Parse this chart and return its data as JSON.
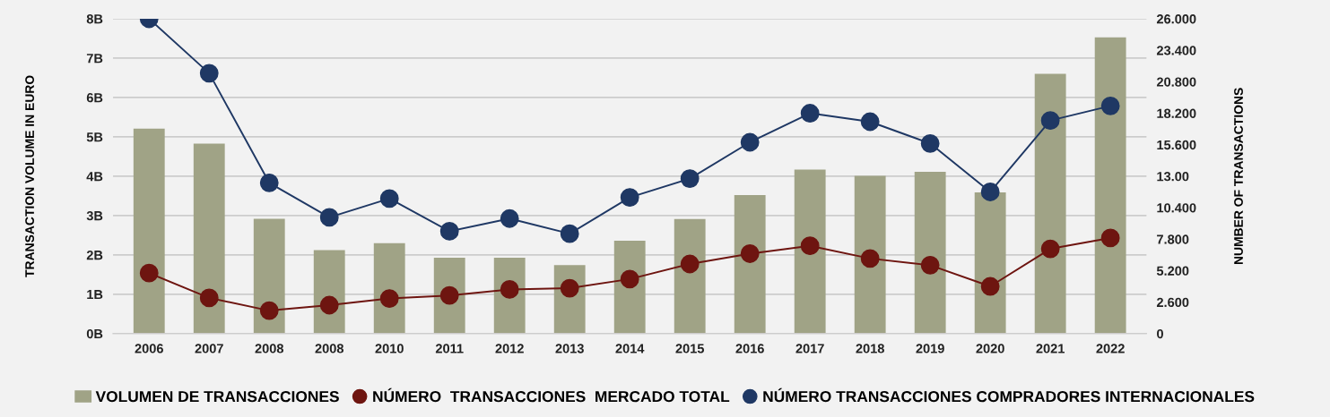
{
  "chart_data": {
    "type": "bar",
    "ylabel": "TRANSACTION VOLUME IN EURO",
    "y2label": "NUMBER OF TRANSACTIONS",
    "categories": [
      "2006",
      "2007",
      "2008",
      "2008",
      "2010",
      "2011",
      "2012",
      "2013",
      "2014",
      "2015",
      "2016",
      "2017",
      "2018",
      "2019",
      "2020",
      "2021",
      "2022"
    ],
    "series": [
      {
        "name": "VOLUMEN DE TRANSACCIONES",
        "color": "#a0a386",
        "values": [
          5.21,
          4.83,
          2.92,
          2.12,
          2.3,
          1.93,
          1.93,
          1.74,
          2.36,
          2.91,
          3.52,
          4.17,
          4.01,
          4.11,
          3.59,
          6.6,
          7.53
        ]
      },
      {
        "name": "NÚMERO  TRANSACCIONES  MERCADO TOTAL",
        "type": "line",
        "axis": "y2",
        "color": "#6e1510",
        "marker": "circle",
        "values": [
          5.0,
          2.95,
          1.9,
          2.35,
          2.9,
          3.15,
          3.65,
          3.75,
          4.5,
          5.75,
          6.6,
          7.25,
          6.2,
          5.65,
          3.9,
          7.0,
          7.9
        ]
      },
      {
        "name": "NÚMERO TRANSACCIONES COMPRADORES INTERNACIONALES",
        "type": "line",
        "axis": "y2",
        "color": "#1f3864",
        "marker": "circle",
        "values": [
          26.0,
          21.5,
          12.45,
          9.6,
          11.15,
          8.45,
          9.5,
          8.25,
          11.25,
          12.8,
          15.8,
          18.2,
          17.5,
          15.7,
          11.7,
          17.6,
          18.8
        ]
      }
    ],
    "ylim": [
      0,
      8
    ],
    "yticks": [
      {
        "value": 0,
        "label": "0B"
      },
      {
        "value": 1,
        "label": "1B"
      },
      {
        "value": 2,
        "label": "2B"
      },
      {
        "value": 3,
        "label": "3B"
      },
      {
        "value": 4,
        "label": "4B"
      },
      {
        "value": 5,
        "label": "5B"
      },
      {
        "value": 6,
        "label": "6B"
      },
      {
        "value": 7,
        "label": "7B"
      },
      {
        "value": 8,
        "label": "8B"
      }
    ],
    "y2lim": [
      0,
      26
    ],
    "y2ticks": [
      0,
      {
        "value": 2.6,
        "label": "2.600"
      },
      {
        "value": 5.2,
        "label": "5.200"
      },
      {
        "value": 7.8,
        "label": "7.800"
      },
      {
        "value": 10.4,
        "label": "10.400"
      },
      {
        "value": 13,
        "label": "13.00"
      },
      {
        "value": 15.6,
        "label": "15.600"
      },
      {
        "value": 18.2,
        "label": "18.200"
      },
      {
        "value": 20.8,
        "label": "20.800"
      },
      {
        "value": 23.4,
        "label": "23.400"
      },
      {
        "value": 26,
        "label": "26.000"
      }
    ],
    "grid": "y",
    "legend": "bottom"
  }
}
